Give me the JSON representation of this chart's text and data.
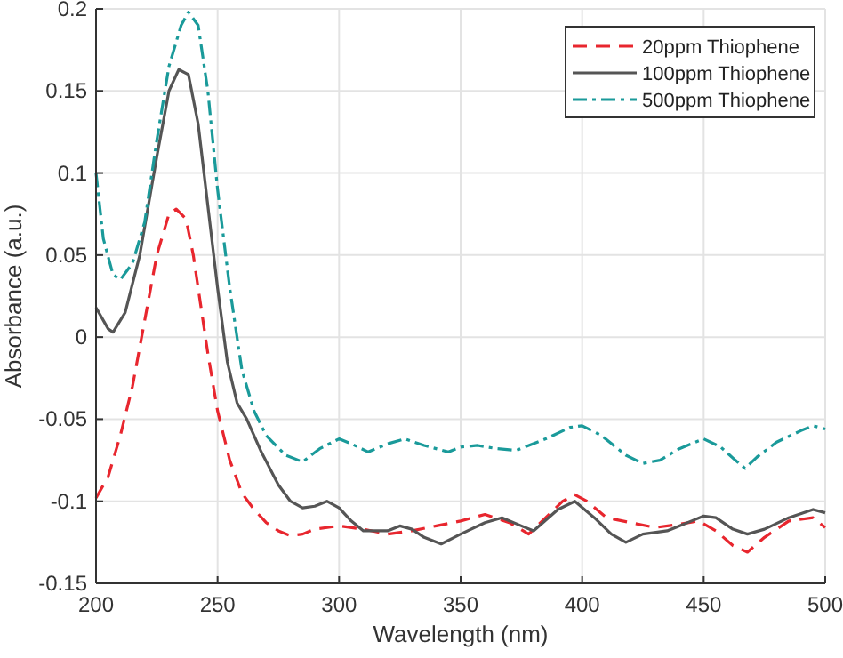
{
  "chart_data": {
    "type": "line",
    "xlabel": "Wavelength (nm)",
    "ylabel": "Absorbance (a.u.)",
    "xlim": [
      200,
      500
    ],
    "xticks": [
      200,
      250,
      300,
      350,
      400,
      450,
      500
    ],
    "ylim": [
      -0.15,
      0.2
    ],
    "yticks": [
      -0.15,
      -0.1,
      -0.05,
      0,
      0.05,
      0.1,
      0.15,
      0.2
    ],
    "grid": true,
    "legend": "top right",
    "marker": "none",
    "series": [
      {
        "name": "20ppm Thiophene",
        "color": "#e8262e",
        "line_style": "dashed",
        "x": [
          200,
          205,
          210,
          215,
          220,
          225,
          230,
          233,
          237,
          240,
          243,
          246,
          250,
          255,
          260,
          265,
          270,
          275,
          280,
          285,
          290,
          300,
          310,
          320,
          330,
          340,
          350,
          360,
          370,
          378,
          385,
          392,
          397,
          402,
          410,
          420,
          430,
          440,
          448,
          455,
          462,
          468,
          475,
          485,
          495,
          500
        ],
        "values": [
          -0.098,
          -0.085,
          -0.06,
          -0.03,
          0.01,
          0.05,
          0.075,
          0.078,
          0.072,
          0.05,
          0.02,
          -0.01,
          -0.045,
          -0.075,
          -0.095,
          -0.105,
          -0.113,
          -0.118,
          -0.121,
          -0.12,
          -0.117,
          -0.115,
          -0.117,
          -0.12,
          -0.118,
          -0.115,
          -0.112,
          -0.108,
          -0.113,
          -0.12,
          -0.11,
          -0.1,
          -0.096,
          -0.1,
          -0.11,
          -0.113,
          -0.116,
          -0.114,
          -0.112,
          -0.118,
          -0.127,
          -0.131,
          -0.122,
          -0.112,
          -0.11,
          -0.116
        ]
      },
      {
        "name": "100ppm Thiophene",
        "color": "#555555",
        "line_style": "solid",
        "x": [
          200,
          205,
          207,
          212,
          218,
          225,
          230,
          234,
          238,
          242,
          246,
          250,
          254,
          258,
          262,
          268,
          275,
          280,
          285,
          290,
          295,
          300,
          305,
          310,
          320,
          325,
          330,
          335,
          342,
          350,
          360,
          367,
          375,
          380,
          390,
          397,
          405,
          412,
          418,
          425,
          435,
          445,
          450,
          455,
          462,
          468,
          475,
          485,
          495,
          500
        ],
        "values": [
          0.018,
          0.005,
          0.003,
          0.015,
          0.05,
          0.11,
          0.15,
          0.163,
          0.16,
          0.13,
          0.08,
          0.03,
          -0.015,
          -0.04,
          -0.05,
          -0.07,
          -0.09,
          -0.1,
          -0.104,
          -0.103,
          -0.1,
          -0.104,
          -0.112,
          -0.118,
          -0.118,
          -0.115,
          -0.117,
          -0.122,
          -0.126,
          -0.12,
          -0.113,
          -0.11,
          -0.115,
          -0.118,
          -0.105,
          -0.1,
          -0.11,
          -0.12,
          -0.125,
          -0.12,
          -0.118,
          -0.112,
          -0.109,
          -0.11,
          -0.117,
          -0.12,
          -0.117,
          -0.11,
          -0.105,
          -0.107
        ]
      },
      {
        "name": "500ppm Thiophene",
        "color": "#1a9a9a",
        "line_style": "dashdot",
        "x": [
          200,
          203,
          207,
          210,
          215,
          220,
          225,
          230,
          235,
          238,
          242,
          246,
          250,
          255,
          260,
          265,
          270,
          278,
          285,
          292,
          300,
          305,
          312,
          320,
          327,
          335,
          345,
          350,
          357,
          365,
          373,
          385,
          395,
          400,
          408,
          418,
          425,
          432,
          440,
          450,
          457,
          463,
          467,
          472,
          480,
          490,
          495,
          500
        ],
        "values": [
          0.1,
          0.06,
          0.038,
          0.035,
          0.045,
          0.07,
          0.12,
          0.165,
          0.19,
          0.198,
          0.19,
          0.15,
          0.09,
          0.03,
          -0.02,
          -0.045,
          -0.06,
          -0.072,
          -0.076,
          -0.068,
          -0.062,
          -0.065,
          -0.07,
          -0.065,
          -0.062,
          -0.066,
          -0.07,
          -0.067,
          -0.066,
          -0.068,
          -0.069,
          -0.062,
          -0.055,
          -0.054,
          -0.06,
          -0.072,
          -0.077,
          -0.075,
          -0.068,
          -0.062,
          -0.067,
          -0.075,
          -0.08,
          -0.073,
          -0.064,
          -0.057,
          -0.054,
          -0.056
        ]
      }
    ]
  }
}
